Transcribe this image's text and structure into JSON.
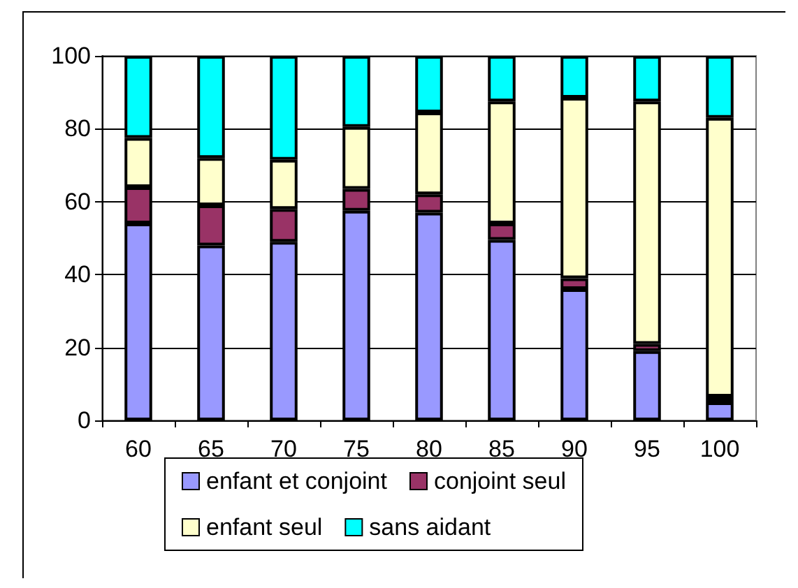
{
  "chart_data": {
    "type": "bar",
    "stacked": true,
    "categories": [
      "60",
      "65",
      "70",
      "75",
      "80",
      "85",
      "90",
      "95",
      "100"
    ],
    "series": [
      {
        "name": "enfant et conjoint",
        "color": "#9999ff",
        "values": [
          54,
          48,
          49,
          57.5,
          57,
          49.5,
          36,
          19,
          5
        ]
      },
      {
        "name": "conjoint seul",
        "color": "#993366",
        "values": [
          10,
          11,
          9,
          6,
          5,
          4.5,
          3,
          2,
          1.5
        ]
      },
      {
        "name": "enfant seul",
        "color": "#ffffcc",
        "values": [
          13.5,
          13,
          13.5,
          17,
          22.5,
          33.5,
          49.5,
          66.5,
          76.5
        ]
      },
      {
        "name": "sans aidant",
        "color": "#00ffff",
        "values": [
          22.5,
          28,
          28.5,
          19.5,
          15.5,
          12.5,
          11.5,
          12.5,
          17
        ]
      }
    ],
    "ylim": [
      0,
      100
    ],
    "yticks": [
      0,
      20,
      40,
      60,
      80,
      100
    ],
    "grid": "y",
    "legend": "bottom"
  }
}
